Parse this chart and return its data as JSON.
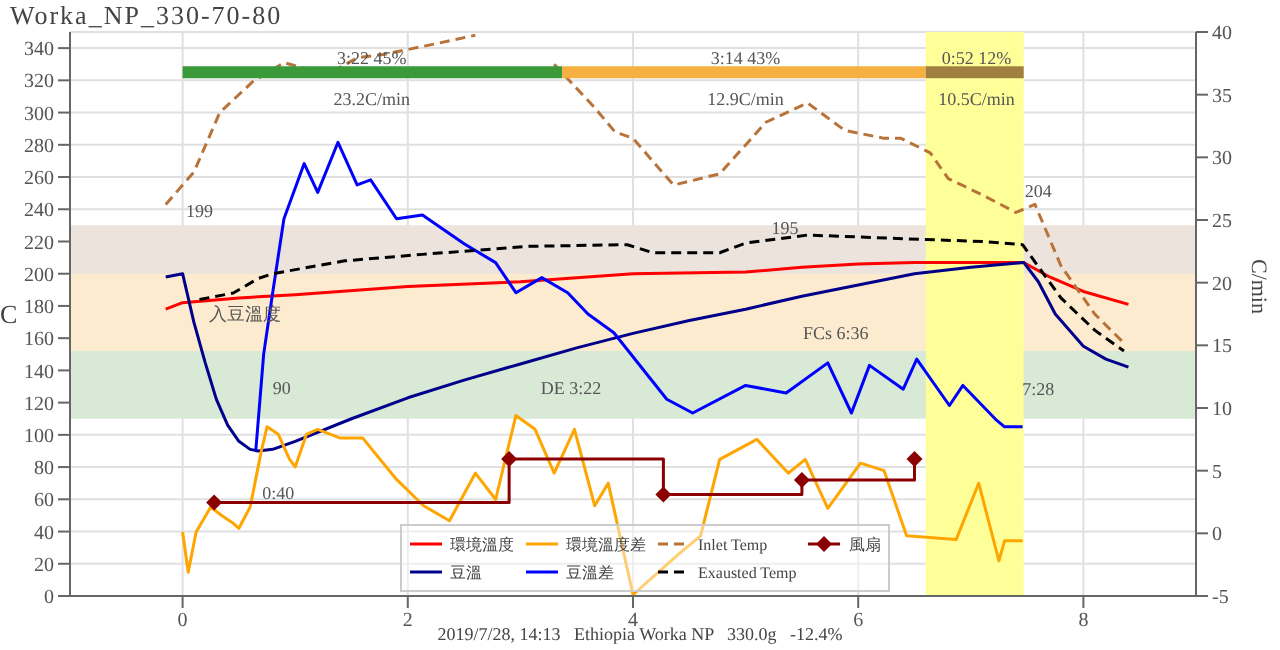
{
  "chart_data": {
    "type": "line",
    "title": "Worka_NP_330-70-80",
    "ylabel": "C",
    "y2label": "C/min",
    "xlim": [
      -1,
      9
    ],
    "xticks": [
      0,
      2,
      4,
      6,
      8
    ],
    "ylim": [
      0,
      350
    ],
    "yticks": [
      0,
      20,
      40,
      60,
      80,
      100,
      120,
      140,
      160,
      180,
      200,
      220,
      240,
      260,
      280,
      300,
      320,
      340
    ],
    "y2lim": [
      -5,
      40
    ],
    "y2ticks": [
      -5,
      0,
      5,
      10,
      15,
      20,
      25,
      30,
      35,
      40
    ],
    "grid": true,
    "legend": "bottom",
    "marker": "none",
    "series": [
      {
        "name": "環境溫度",
        "color": "#ff0000",
        "x": [
          -0.15,
          0,
          0.5,
          1,
          2,
          3,
          4,
          5,
          5.5,
          6,
          6.5,
          7,
          7.47,
          7.7,
          8,
          8.4
        ],
        "values": [
          178,
          182,
          185,
          187,
          192,
          195,
          200,
          201,
          204,
          206,
          207,
          207,
          207,
          198,
          189,
          181
        ]
      },
      {
        "name": "豆溫",
        "color": "#00008b",
        "x": [
          -0.15,
          0,
          0.05,
          0.1,
          0.2,
          0.3,
          0.4,
          0.5,
          0.6,
          0.67,
          0.8,
          1,
          1.5,
          2,
          2.5,
          3,
          3.5,
          4,
          4.5,
          5,
          5.5,
          6,
          6.5,
          7,
          7.47,
          7.6,
          7.75,
          8,
          8.2,
          8.4
        ],
        "values": [
          198,
          200,
          185,
          170,
          145,
          122,
          106,
          96,
          91,
          90,
          91,
          96,
          110,
          123,
          134,
          144,
          154,
          163,
          171,
          178,
          186,
          193,
          200,
          204,
          207,
          195,
          175,
          155,
          147,
          142
        ]
      },
      {
        "name": "環境溫度差",
        "color": "#ffa500",
        "axis": "y2",
        "x": [
          0,
          0.05,
          0.12,
          0.25,
          0.35,
          0.45,
          0.5,
          0.6,
          0.7,
          0.75,
          0.85,
          0.95,
          1.0,
          1.1,
          1.2,
          1.4,
          1.6,
          1.9,
          2.14,
          2.37,
          2.6,
          2.78,
          2.96,
          3.13,
          3.3,
          3.48,
          3.66,
          3.78,
          4.0,
          4.4,
          4.6,
          4.77,
          5.1,
          5.38,
          5.53,
          5.73,
          6.02,
          6.23,
          6.43,
          6.87,
          7.07,
          7.25,
          7.3,
          7.46
        ],
        "values": [
          0.1,
          -3.1,
          0.1,
          2.1,
          1.4,
          0.8,
          0.4,
          2.1,
          6.6,
          8.5,
          7.9,
          5.9,
          5.3,
          7.9,
          8.3,
          7.6,
          7.6,
          4.3,
          2.2,
          1.0,
          4.8,
          2.7,
          9.4,
          8.3,
          4.8,
          8.3,
          2.2,
          4.0,
          -4.9,
          -1.7,
          -0.2,
          5.9,
          7.5,
          4.8,
          5.9,
          2.0,
          5.6,
          5.0,
          -0.2,
          -0.5,
          4.0,
          -2.2,
          -0.6,
          -0.6
        ]
      },
      {
        "name": "豆溫差",
        "color": "#0000ff",
        "axis": "y2",
        "x": [
          0.65,
          0.72,
          0.8,
          0.9,
          1.08,
          1.2,
          1.38,
          1.55,
          1.67,
          1.9,
          2.13,
          2.5,
          2.78,
          2.96,
          3.19,
          3.42,
          3.6,
          3.83,
          4.3,
          4.53,
          5.0,
          5.36,
          5.73,
          5.94,
          6.1,
          6.4,
          6.52,
          6.81,
          6.93,
          7.22,
          7.3,
          7.46
        ],
        "values": [
          6.6,
          14.3,
          19.2,
          25.1,
          29.5,
          27.2,
          31.2,
          27.8,
          28.2,
          25.1,
          25.4,
          23.1,
          21.6,
          19.2,
          20.4,
          19.2,
          17.5,
          16.0,
          10.7,
          9.6,
          11.8,
          11.2,
          13.6,
          9.6,
          13.4,
          11.5,
          13.9,
          10.2,
          11.8,
          9.1,
          8.5,
          8.5
        ]
      },
      {
        "name": "Inlet Temp",
        "color": "#b8733a",
        "line_style": "dashed",
        "x": [
          -0.15,
          0.1,
          0.33,
          0.62,
          0.9,
          1.2,
          1.32,
          1.55,
          1.78,
          2.2,
          2.6,
          2.7,
          2.9,
          3.08,
          3.3,
          3.66,
          3.84,
          4.0,
          4.36,
          4.77,
          5.18,
          5.55,
          5.88,
          6.23,
          6.38,
          6.64,
          6.8,
          7.1,
          7.4,
          7.57,
          7.8,
          8.1,
          8.36
        ],
        "values": [
          243,
          263,
          300,
          319,
          331,
          325,
          325,
          334,
          336,
          342,
          348,
          null,
          null,
          null,
          330,
          303,
          288,
          284,
          255,
          262,
          294,
          306,
          289,
          284,
          284,
          275,
          259,
          249,
          238,
          243,
          205,
          175,
          157
        ]
      },
      {
        "name": "Exausted Temp",
        "color": "#000000",
        "line_style": "dashed",
        "x": [
          0.15,
          0.45,
          0.67,
          0.8,
          1.44,
          2.13,
          3.07,
          3.95,
          4.18,
          4.77,
          5.0,
          5.55,
          6.29,
          7.1,
          7.46,
          7.8,
          8.1,
          8.36
        ],
        "values": [
          184,
          188,
          197,
          200,
          208,
          212,
          217,
          218,
          213,
          213,
          219,
          224,
          222,
          220,
          218,
          185,
          165,
          152
        ]
      },
      {
        "name": "風扇",
        "type": "step",
        "color": "#8b0000",
        "marker": "diamond",
        "x": [
          0.28,
          2.9,
          4.27,
          5.5,
          6.5
        ],
        "values": [
          58,
          85,
          63,
          72,
          85
        ]
      },
      {
        "color": "#3a9a3a",
        "x": [
          0,
          3.37
        ],
        "values": [
          325,
          325
        ]
      },
      {
        "color": "#f5b041",
        "x": [
          3.37,
          6.6
        ],
        "values": [
          325,
          325
        ]
      },
      {
        "color": "#a08040",
        "x": [
          6.6,
          7.47
        ],
        "values": [
          325,
          325
        ]
      }
    ],
    "bands": [
      {
        "axis": "y",
        "from": 200,
        "to": 230,
        "color": "#ebe3dc"
      },
      {
        "axis": "y",
        "from": 152,
        "to": 200,
        "color": "#fdebd0"
      },
      {
        "axis": "y",
        "from": 110,
        "to": 152,
        "color": "#d8ead6"
      },
      {
        "axis": "x",
        "from": 6.6,
        "to": 7.47,
        "color": "#ffff99"
      }
    ],
    "annotations": [
      {
        "text": "3:22  45%",
        "x": 1.68,
        "y": 333
      },
      "23.2C/min",
      {
        "text": "3:14  43%",
        "x": 5.0,
        "y": 333
      },
      "12.9C/min",
      {
        "text": "0:52  12%",
        "x": 7.05,
        "y": 333
      },
      "10.5C/min",
      "199",
      "入豆溫度",
      "90",
      {
        "text": "0:40",
        "x": 0.85,
        "y": 63
      },
      "DE 3:22",
      {
        "text": "195",
        "x": 5.35,
        "y": 227
      },
      "FCs 6:36",
      "204",
      "7:28",
      "2019/7/28, 14:13   Ethiopia Worka NP   330.0g   -12.4%"
    ]
  }
}
